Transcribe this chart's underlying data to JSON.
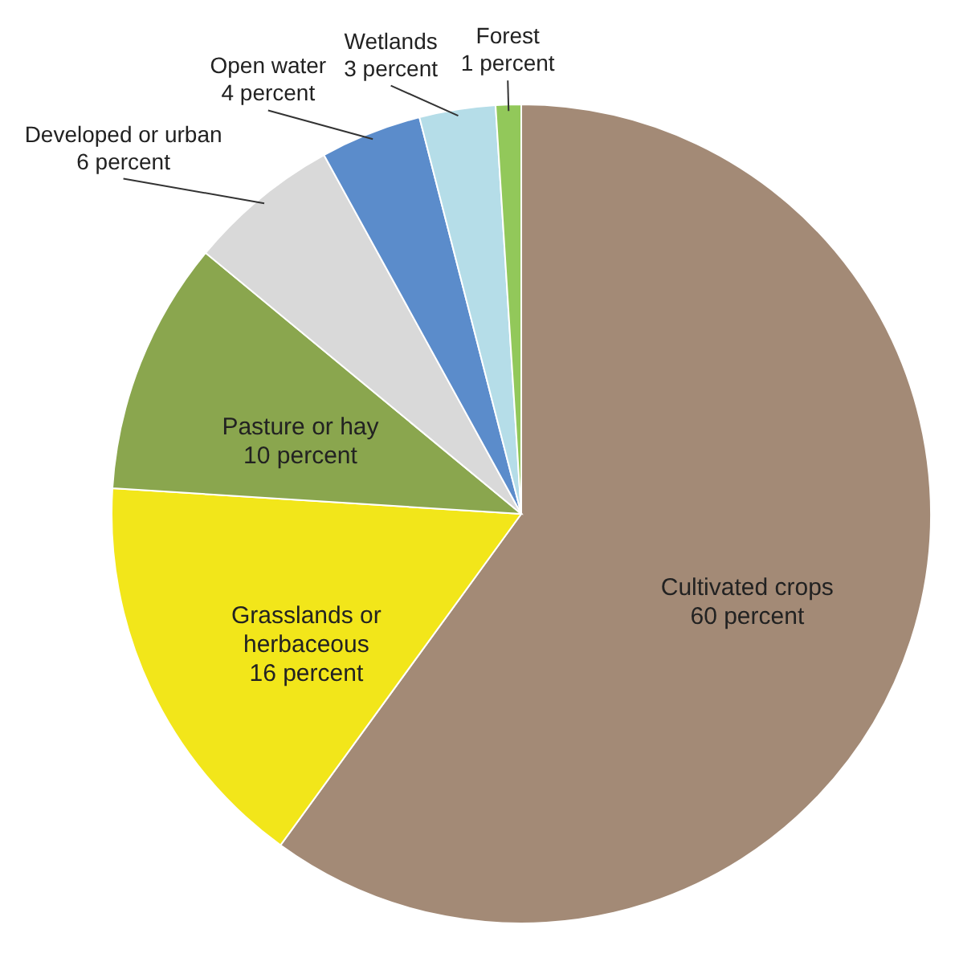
{
  "chart_data": {
    "type": "pie",
    "categories": [
      "Cultivated crops",
      "Grasslands or herbaceous",
      "Pasture or hay",
      "Developed or urban",
      "Open water",
      "Wetlands",
      "Forest"
    ],
    "values": [
      60,
      16,
      10,
      6,
      4,
      3,
      1
    ],
    "colors": [
      "#a38a76",
      "#f2e61a",
      "#8aa64e",
      "#d9d9d9",
      "#5b8ccb",
      "#b5dde8",
      "#92c85a"
    ],
    "value_labels": [
      "60 percent",
      "16 percent",
      "10 percent",
      "6 percent",
      "4 percent",
      "3 percent",
      "1 percent"
    ],
    "legend": false
  }
}
